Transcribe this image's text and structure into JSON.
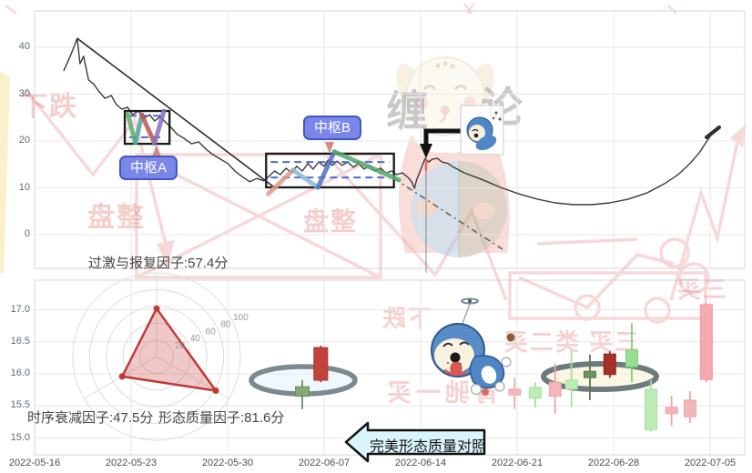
{
  "watermarks": {
    "brand_left": "缠",
    "brand_right": "论",
    "downtrend_top": "下跌",
    "consolidation_1": "盘整",
    "consolidation_2": "盘整",
    "downtrend_bottom": "下跌",
    "divergence_buy1": "背驰一买",
    "buy3_right": "三买",
    "buy3_class2_row": "三买 类二买"
  },
  "annotations": {
    "pivot_a_label": "中枢A",
    "pivot_b_label": "中枢B",
    "callout": "完美形态质量对照",
    "factor_top": "过激与报复因子:57.4分",
    "factor_left": "时序衰减因子:47.5分",
    "factor_right": "形态质量因子:81.6分"
  },
  "axes": {
    "price_ticks": [
      "40",
      "30",
      "20",
      "10",
      "0"
    ],
    "price_tick_values": [
      40,
      30,
      20,
      10,
      0
    ],
    "value_ticks": [
      "17.0",
      "16.5",
      "16.0",
      "15.5",
      "15.0"
    ],
    "value_tick_values": [
      17.0,
      16.5,
      16.0,
      15.5,
      15.0
    ],
    "dates": [
      "2022-05-16",
      "2022-05-23",
      "2022-05-30",
      "2022-06-07",
      "2022-06-14",
      "2022-06-21",
      "2022-06-28",
      "2022-07-05"
    ],
    "radar_ticks": [
      "20",
      "40",
      "60",
      "80",
      "100"
    ]
  },
  "colors": {
    "price_line": "#3a3a3a",
    "trend_line": "#2d2d2d",
    "pivot_box": "#1a1a1a",
    "pivot_band": "#5068d8",
    "pivot_label_bg": "#7b87e8",
    "radar_red": "#bf3a36",
    "watermark_red": "#e26a6a",
    "callout_fill": "#daf5fa",
    "candle_up_solid": "#c2423c",
    "candle_down_solid": "#86a873",
    "candle_up_light": "#f3b6ba",
    "candle_down_light": "#bcecb4",
    "highlight_ring": "#6d7a7e"
  },
  "chart_data": [
    {
      "type": "line",
      "title": "price trend with Chan pivots",
      "ylim": [
        0,
        45
      ],
      "yticks": [
        0,
        10,
        20,
        30,
        40
      ],
      "x_range": [
        "2022-05-16",
        "2022-07-05"
      ],
      "price_path": [
        [
          0.041,
          35.0
        ],
        [
          0.051,
          38.4
        ],
        [
          0.06,
          41.9
        ],
        [
          0.064,
          36.5
        ],
        [
          0.069,
          38.1
        ],
        [
          0.076,
          33.0
        ],
        [
          0.083,
          32.2
        ],
        [
          0.09,
          30.7
        ],
        [
          0.099,
          29.1
        ],
        [
          0.108,
          29.7
        ],
        [
          0.115,
          27.8
        ],
        [
          0.123,
          26.8
        ],
        [
          0.131,
          27.2
        ],
        [
          0.138,
          25.6
        ],
        [
          0.146,
          26.4
        ],
        [
          0.154,
          24.9
        ],
        [
          0.162,
          25.6
        ],
        [
          0.169,
          24.3
        ],
        [
          0.177,
          25.2
        ],
        [
          0.185,
          23.9
        ],
        [
          0.192,
          22.9
        ],
        [
          0.201,
          21.4
        ],
        [
          0.21,
          20.6
        ],
        [
          0.221,
          19.4
        ],
        [
          0.231,
          19.8
        ],
        [
          0.241,
          18.3
        ],
        [
          0.251,
          17.1
        ],
        [
          0.262,
          16.1
        ],
        [
          0.272,
          15.2
        ],
        [
          0.282,
          13.6
        ],
        [
          0.292,
          12.4
        ],
        [
          0.303,
          11.3
        ],
        [
          0.313,
          12.0
        ],
        [
          0.323,
          11.5
        ],
        [
          0.331,
          12.6
        ],
        [
          0.338,
          13.6
        ],
        [
          0.346,
          12.8
        ],
        [
          0.354,
          14.2
        ],
        [
          0.362,
          13.2
        ],
        [
          0.369,
          14.6
        ],
        [
          0.377,
          13.6
        ],
        [
          0.385,
          15.2
        ],
        [
          0.392,
          14.0
        ],
        [
          0.4,
          15.5
        ],
        [
          0.408,
          14.6
        ],
        [
          0.413,
          15.9
        ],
        [
          0.419,
          14.8
        ],
        [
          0.426,
          15.7
        ],
        [
          0.433,
          14.8
        ],
        [
          0.441,
          15.5
        ],
        [
          0.449,
          14.4
        ],
        [
          0.456,
          15.2
        ],
        [
          0.464,
          14.0
        ],
        [
          0.472,
          14.8
        ],
        [
          0.479,
          13.6
        ],
        [
          0.487,
          14.2
        ],
        [
          0.495,
          13.2
        ],
        [
          0.503,
          13.6
        ],
        [
          0.51,
          12.8
        ],
        [
          0.518,
          13.2
        ],
        [
          0.526,
          12.2
        ],
        [
          0.531,
          11.3
        ],
        [
          0.535,
          9.9
        ],
        [
          0.538,
          11.7
        ],
        [
          0.542,
          13.2
        ],
        [
          0.546,
          14.8
        ],
        [
          0.55,
          16.3
        ],
        [
          0.555,
          15.5
        ],
        [
          0.56,
          16.1
        ],
        [
          0.567,
          16.3
        ],
        [
          0.574,
          15.5
        ],
        [
          0.582,
          15.2
        ],
        [
          0.59,
          14.4
        ],
        [
          0.605,
          13.2
        ],
        [
          0.631,
          11.7
        ],
        [
          0.656,
          10.1
        ],
        [
          0.682,
          8.7
        ],
        [
          0.708,
          7.6
        ],
        [
          0.733,
          6.8
        ],
        [
          0.759,
          6.4
        ],
        [
          0.785,
          6.4
        ],
        [
          0.81,
          6.8
        ],
        [
          0.836,
          7.6
        ],
        [
          0.862,
          8.9
        ],
        [
          0.887,
          10.9
        ],
        [
          0.906,
          12.8
        ],
        [
          0.923,
          15.2
        ],
        [
          0.936,
          17.5
        ],
        [
          0.946,
          19.8
        ],
        [
          0.955,
          21.8
        ]
      ],
      "trend_line": [
        [
          0.06,
          41.9
        ],
        [
          0.336,
          10.3
        ]
      ],
      "dashed_projection": [
        [
          0.506,
          12.0
        ],
        [
          0.659,
          -3.1
        ]
      ],
      "pivots": [
        {
          "name": "中枢A",
          "x0": 0.127,
          "x1": 0.19,
          "v0": 19.4,
          "v1": 26.4,
          "band": [
            25.4,
            20.8
          ],
          "strokes": [
            {
              "color": "#61a868",
              "pts": [
                [
                  0.131,
                  25.8
                ],
                [
                  0.142,
                  19.6
                ]
              ]
            },
            {
              "color": "#4aa8a0",
              "pts": [
                [
                  0.142,
                  19.6
                ],
                [
                  0.151,
                  25.6
                ]
              ]
            },
            {
              "color": "#c05450",
              "pts": [
                [
                  0.151,
                  25.6
                ],
                [
                  0.169,
                  19.5
                ]
              ]
            },
            {
              "color": "#8a6fc0",
              "pts": [
                [
                  0.169,
                  19.5
                ],
                [
                  0.182,
                  26.4
                ]
              ]
            }
          ]
        },
        {
          "name": "中枢B",
          "x0": 0.326,
          "x1": 0.506,
          "v0": 10.1,
          "v1": 17.3,
          "band": [
            15.5,
            12.2
          ],
          "strokes": [
            {
              "color": "#e09a8a",
              "pts": [
                [
                  0.329,
                  8.7
                ],
                [
                  0.364,
                  13.8
                ]
              ]
            },
            {
              "color": "#85b8d8",
              "pts": [
                [
                  0.364,
                  13.8
                ],
                [
                  0.399,
                  10.1
                ]
              ]
            },
            {
              "color": "#4f6fc8",
              "pts": [
                [
                  0.399,
                  10.1
                ],
                [
                  0.422,
                  17.7
                ]
              ]
            },
            {
              "color": "#57a86b",
              "pts": [
                [
                  0.422,
                  17.7
                ],
                [
                  0.513,
                  11.7
                ]
              ]
            }
          ]
        }
      ]
    },
    {
      "type": "radar",
      "max": 100,
      "tick_step": 20,
      "indicators": [
        {
          "name": "过激与报复因子",
          "value": 57.4
        },
        {
          "name": "时序衰减因子",
          "value": 47.5
        },
        {
          "name": "形态质量因子",
          "value": 81.6
        }
      ]
    },
    {
      "type": "candlestick",
      "ylim": [
        15.0,
        17.2
      ],
      "yticks": [
        15.0,
        15.5,
        16.0,
        16.5,
        17.0
      ],
      "candles": [
        {
          "x": 0.377,
          "o": 15.8,
          "c": 15.65,
          "h": 15.9,
          "l": 15.45,
          "tone": "green",
          "wide": true
        },
        {
          "x": 0.403,
          "o": 15.9,
          "c": 16.41,
          "h": 16.44,
          "l": 15.87,
          "tone": "red",
          "wide": true
        },
        {
          "x": 0.676,
          "o": 15.76,
          "c": 15.67,
          "h": 15.94,
          "l": 15.45,
          "tone": "pink"
        },
        {
          "x": 0.705,
          "o": 15.79,
          "c": 15.62,
          "h": 15.87,
          "l": 15.48,
          "tone": "green-light"
        },
        {
          "x": 0.733,
          "o": 15.87,
          "c": 15.65,
          "h": 16.16,
          "l": 15.38,
          "tone": "pink"
        },
        {
          "x": 0.756,
          "o": 15.9,
          "c": 15.76,
          "h": 16.37,
          "l": 15.48,
          "tone": "green-light"
        },
        {
          "x": 0.782,
          "o": 16.04,
          "c": 15.94,
          "h": 16.3,
          "l": 15.59,
          "tone": "green-dark"
        },
        {
          "x": 0.81,
          "o": 15.99,
          "c": 16.31,
          "h": 16.35,
          "l": 15.94,
          "tone": "red-dark"
        },
        {
          "x": 0.841,
          "o": 16.37,
          "c": 16.11,
          "h": 16.79,
          "l": 15.87,
          "tone": "green-mid"
        },
        {
          "x": 0.868,
          "o": 15.76,
          "c": 15.13,
          "h": 15.9,
          "l": 15.1,
          "tone": "green-light"
        },
        {
          "x": 0.897,
          "o": 15.48,
          "c": 15.38,
          "h": 15.66,
          "l": 15.19,
          "tone": "pink"
        },
        {
          "x": 0.923,
          "o": 15.59,
          "c": 15.33,
          "h": 15.73,
          "l": 15.23,
          "tone": "pink"
        },
        {
          "x": 0.946,
          "o": 17.08,
          "c": 15.91,
          "h": 17.11,
          "l": 15.87,
          "tone": "red-light"
        }
      ]
    }
  ]
}
